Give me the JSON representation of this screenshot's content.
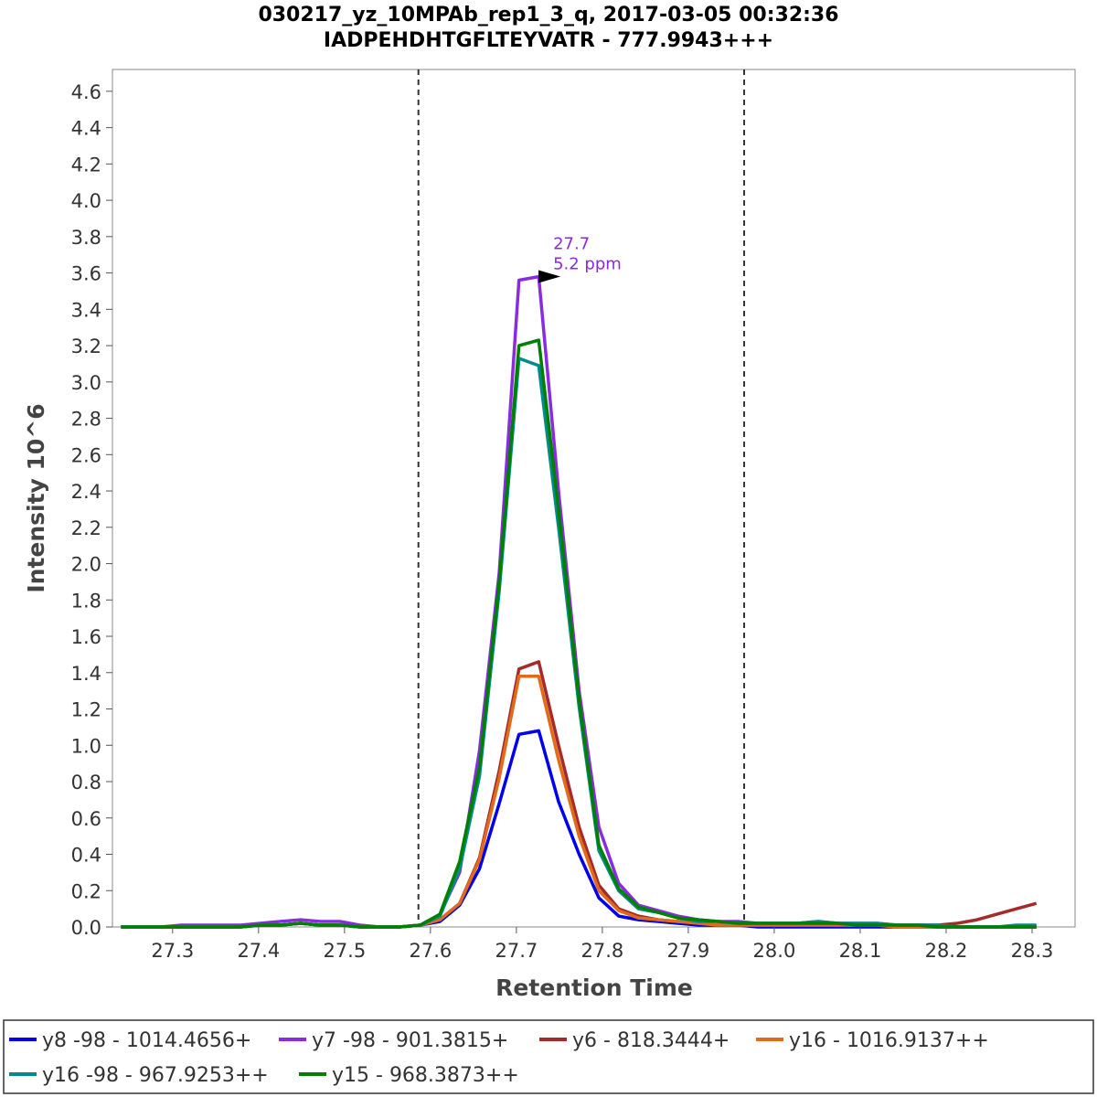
{
  "chart_data": {
    "type": "line",
    "title": "030217_yz_10MPAb_rep1_3_q, 2017-03-05 00:32:36",
    "subtitle": "IADPEHDHTGFLTEYVATR - 777.9943+++",
    "xlabel": "Retention Time",
    "ylabel": "Intensity 10^6",
    "xlim": [
      27.23,
      28.35
    ],
    "ylim": [
      0.0,
      4.72
    ],
    "x_ticks": [
      27.3,
      27.4,
      27.5,
      27.6,
      27.7,
      27.8,
      27.9,
      28.0,
      28.1,
      28.2,
      28.3
    ],
    "x_tick_labels": [
      "27.3",
      "27.4",
      "27.5",
      "27.6",
      "27.7",
      "27.8",
      "27.9",
      "28.0",
      "28.1",
      "28.2",
      "28.3"
    ],
    "y_ticks": [
      0.0,
      0.2,
      0.4,
      0.6,
      0.8,
      1.0,
      1.2,
      1.4,
      1.6,
      1.8,
      2.0,
      2.2,
      2.4,
      2.6,
      2.8,
      3.0,
      3.2,
      3.4,
      3.6,
      3.8,
      4.0,
      4.2,
      4.4,
      4.6
    ],
    "y_tick_labels": [
      "0.0",
      "0.2",
      "0.4",
      "0.6",
      "0.8",
      "1.0",
      "1.2",
      "1.4",
      "1.6",
      "1.8",
      "2.0",
      "2.2",
      "2.4",
      "2.6",
      "2.8",
      "3.0",
      "3.2",
      "3.4",
      "3.6",
      "3.8",
      "4.0",
      "4.2",
      "4.4",
      "4.6"
    ],
    "grid": false,
    "integration_bounds": [
      27.586,
      27.965
    ],
    "peak_annotation": {
      "x": 27.73,
      "y": 3.58,
      "label": "27.7",
      "ppm": "5.2 ppm",
      "color": "#8a2be2"
    },
    "x": [
      27.24,
      27.263,
      27.286,
      27.31,
      27.333,
      27.356,
      27.379,
      27.402,
      27.425,
      27.449,
      27.472,
      27.495,
      27.518,
      27.541,
      27.564,
      27.588,
      27.611,
      27.634,
      27.657,
      27.68,
      27.703,
      27.726,
      27.749,
      27.773,
      27.796,
      27.819,
      27.842,
      27.865,
      27.888,
      27.912,
      27.935,
      27.958,
      27.981,
      28.004,
      28.027,
      28.051,
      28.074,
      28.097,
      28.12,
      28.143,
      28.166,
      28.19,
      28.213,
      28.236,
      28.259,
      28.282,
      28.305
    ],
    "series": [
      {
        "name": "y8 -98 - 1014.4656+",
        "color": "#0000ee",
        "values": [
          0.0,
          0.0,
          0.0,
          0.0,
          0.0,
          0.0,
          0.0,
          0.01,
          0.01,
          0.02,
          0.01,
          0.01,
          0.0,
          0.0,
          0.0,
          0.01,
          0.03,
          0.12,
          0.32,
          0.68,
          1.06,
          1.08,
          0.69,
          0.4,
          0.16,
          0.06,
          0.04,
          0.03,
          0.02,
          0.01,
          0.01,
          0.01,
          0.0,
          0.0,
          0.0,
          0.0,
          0.0,
          0.0,
          0.0,
          0.0,
          0.0,
          0.0,
          0.0,
          0.0,
          0.0,
          0.0,
          0.0
        ]
      },
      {
        "name": "y7 -98 - 901.3815+",
        "color": "#8a2be2",
        "values": [
          0.0,
          0.0,
          0.0,
          0.01,
          0.01,
          0.01,
          0.01,
          0.02,
          0.03,
          0.04,
          0.03,
          0.03,
          0.01,
          0.0,
          0.0,
          0.01,
          0.07,
          0.3,
          0.97,
          1.95,
          3.56,
          3.58,
          2.4,
          1.3,
          0.55,
          0.24,
          0.12,
          0.09,
          0.06,
          0.04,
          0.03,
          0.03,
          0.02,
          0.02,
          0.02,
          0.03,
          0.02,
          0.02,
          0.02,
          0.01,
          0.01,
          0.01,
          0.0,
          0.0,
          0.0,
          0.0,
          0.0
        ]
      },
      {
        "name": "y6 - 818.3444+",
        "color": "#a52a2a",
        "values": [
          0.0,
          0.0,
          0.0,
          0.0,
          0.0,
          0.0,
          0.0,
          0.01,
          0.01,
          0.02,
          0.01,
          0.01,
          0.0,
          0.0,
          0.0,
          0.01,
          0.04,
          0.13,
          0.38,
          0.86,
          1.42,
          1.46,
          1.0,
          0.55,
          0.23,
          0.1,
          0.06,
          0.04,
          0.03,
          0.02,
          0.01,
          0.01,
          0.01,
          0.01,
          0.01,
          0.01,
          0.01,
          0.01,
          0.01,
          0.0,
          0.01,
          0.01,
          0.02,
          0.04,
          0.07,
          0.1,
          0.13
        ]
      },
      {
        "name": "y16 - 1016.9137++",
        "color": "#e06c1a",
        "values": [
          0.0,
          0.0,
          0.0,
          0.0,
          0.0,
          0.0,
          0.0,
          0.01,
          0.01,
          0.02,
          0.01,
          0.01,
          0.0,
          0.0,
          0.0,
          0.01,
          0.04,
          0.13,
          0.37,
          0.82,
          1.38,
          1.38,
          0.92,
          0.5,
          0.2,
          0.09,
          0.05,
          0.04,
          0.03,
          0.02,
          0.01,
          0.01,
          0.01,
          0.01,
          0.01,
          0.01,
          0.01,
          0.01,
          0.01,
          0.0,
          0.0,
          0.0,
          0.0,
          0.0,
          0.0,
          0.0,
          0.0
        ]
      },
      {
        "name": "y16 -98 - 967.9253++",
        "color": "#008b8b",
        "values": [
          0.0,
          0.0,
          0.0,
          0.0,
          0.0,
          0.0,
          0.0,
          0.01,
          0.01,
          0.02,
          0.01,
          0.01,
          0.0,
          0.0,
          0.0,
          0.01,
          0.06,
          0.32,
          0.83,
          1.85,
          3.13,
          3.09,
          2.2,
          1.21,
          0.42,
          0.2,
          0.1,
          0.08,
          0.05,
          0.03,
          0.03,
          0.02,
          0.02,
          0.02,
          0.02,
          0.03,
          0.02,
          0.02,
          0.02,
          0.01,
          0.01,
          0.01,
          0.0,
          0.0,
          0.0,
          0.01,
          0.01
        ]
      },
      {
        "name": "y15 - 968.3873++",
        "color": "#008000",
        "values": [
          0.0,
          0.0,
          0.0,
          0.0,
          0.0,
          0.0,
          0.0,
          0.01,
          0.01,
          0.02,
          0.01,
          0.01,
          0.0,
          0.0,
          0.0,
          0.01,
          0.07,
          0.36,
          0.88,
          1.9,
          3.2,
          3.23,
          2.3,
          1.25,
          0.45,
          0.21,
          0.11,
          0.08,
          0.05,
          0.04,
          0.03,
          0.02,
          0.02,
          0.02,
          0.02,
          0.02,
          0.02,
          0.01,
          0.01,
          0.01,
          0.01,
          0.0,
          0.0,
          0.0,
          0.0,
          0.0,
          0.0
        ]
      }
    ],
    "legend_position": "bottom"
  }
}
